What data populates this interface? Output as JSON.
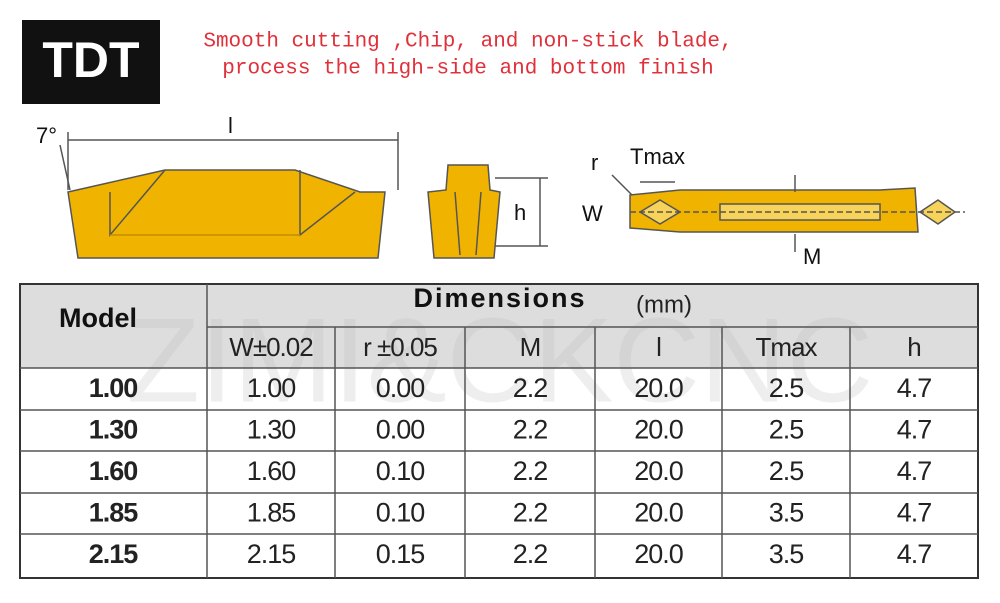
{
  "logo": "TDT",
  "tagline": [
    "Smooth cutting ,Chip, and non-stick blade,",
    "process the high-side and bottom finish"
  ],
  "watermark": "ZIMI&CKCNC",
  "diagram_labels": {
    "angle": "7°",
    "length": "l",
    "height": "h",
    "radius": "r",
    "tmax": "Tmax",
    "width": "W",
    "m": "M"
  },
  "table": {
    "model_header": "Model",
    "group_header": "Dimensions",
    "unit": "(mm)",
    "columns": [
      "W±0.02",
      "r ±0.05",
      "M",
      "l",
      "Tmax",
      "h"
    ],
    "rows": [
      [
        "1.00",
        "1.00",
        "0.00",
        "2.2",
        "20.0",
        "2.5",
        "4.7"
      ],
      [
        "1.30",
        "1.30",
        "0.00",
        "2.2",
        "20.0",
        "2.5",
        "4.7"
      ],
      [
        "1.60",
        "1.60",
        "0.10",
        "2.2",
        "20.0",
        "2.5",
        "4.7"
      ],
      [
        "1.85",
        "1.85",
        "0.10",
        "2.2",
        "20.0",
        "3.5",
        "4.7"
      ],
      [
        "2.15",
        "2.15",
        "0.15",
        "2.2",
        "20.0",
        "3.5",
        "4.7"
      ]
    ]
  }
}
